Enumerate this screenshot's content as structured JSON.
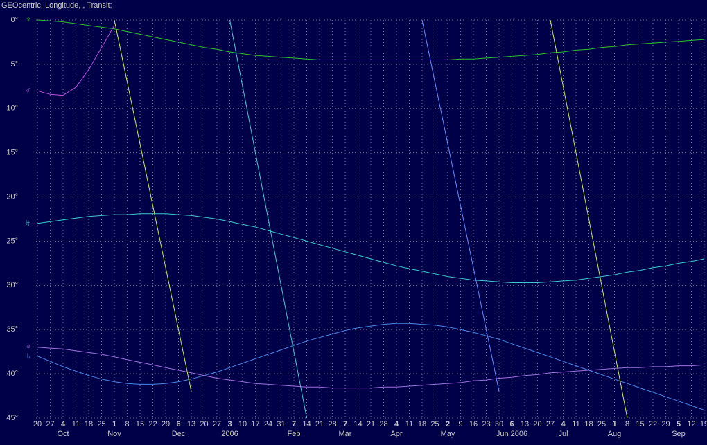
{
  "chart_data": {
    "type": "line",
    "title": "GEOcentric, Longitude, , Transit;",
    "categories": [
      "20",
      "27",
      "4",
      "11",
      "18",
      "25",
      "1",
      "8",
      "15",
      "22",
      "29",
      "6",
      "13",
      "20",
      "27",
      "3",
      "10",
      "17",
      "24",
      "31",
      "7",
      "14",
      "21",
      "28",
      "7",
      "14",
      "21",
      "28",
      "4",
      "11",
      "18",
      "25",
      "2",
      "9",
      "16",
      "23",
      "30",
      "6",
      "13",
      "20",
      "27",
      "4",
      "11",
      "18",
      "25",
      "1",
      "8",
      "15",
      "22",
      "29",
      "5",
      "12",
      "19"
    ],
    "month_labels": [
      null,
      null,
      "Oct",
      null,
      null,
      null,
      "Nov",
      null,
      null,
      null,
      null,
      "Dec",
      null,
      null,
      null,
      "2006",
      null,
      null,
      null,
      null,
      "Feb",
      null,
      null,
      null,
      "Mar",
      null,
      null,
      null,
      "Apr",
      null,
      null,
      null,
      "May",
      null,
      null,
      null,
      null,
      "Jun 2006",
      null,
      null,
      null,
      "Jul",
      null,
      null,
      null,
      "Aug",
      null,
      null,
      null,
      null,
      "Sep",
      null,
      null
    ],
    "ylim": [
      0,
      45
    ],
    "yticks": [
      {
        "value": 0,
        "label": "0°"
      },
      {
        "value": 5,
        "label": "5°"
      },
      {
        "value": 10,
        "label": "10°"
      },
      {
        "value": 15,
        "label": "15°"
      },
      {
        "value": 20,
        "label": "20°"
      },
      {
        "value": 25,
        "label": "25°"
      },
      {
        "value": 30,
        "label": "30°"
      },
      {
        "value": 35,
        "label": "35°"
      },
      {
        "value": 40,
        "label": "40°"
      },
      {
        "value": 45,
        "label": "45°"
      }
    ],
    "y_inverted": true,
    "grid": true,
    "series": [
      {
        "name": "♆",
        "color": "#30c030",
        "values": [
          0,
          0.1,
          0.2,
          0.4,
          0.6,
          0.8,
          1.0,
          1.3,
          1.6,
          1.9,
          2.2,
          2.5,
          2.8,
          3.1,
          3.3,
          3.6,
          3.8,
          4.0,
          4.1,
          4.2,
          4.3,
          4.4,
          4.5,
          4.5,
          4.5,
          4.5,
          4.5,
          4.5,
          4.5,
          4.5,
          4.5,
          4.5,
          4.5,
          4.4,
          4.4,
          4.3,
          4.2,
          4.1,
          4.0,
          3.9,
          3.7,
          3.6,
          3.4,
          3.3,
          3.1,
          3.0,
          2.8,
          2.7,
          2.6,
          2.5,
          2.4,
          2.3,
          2.2
        ]
      },
      {
        "name": "♅",
        "color": "#40c8d0",
        "values": [
          23,
          22.8,
          22.6,
          22.4,
          22.2,
          22.1,
          22.0,
          22.0,
          21.9,
          21.9,
          21.9,
          22.0,
          22.1,
          22.3,
          22.5,
          22.8,
          23.1,
          23.4,
          23.8,
          24.2,
          24.6,
          25.0,
          25.4,
          25.8,
          26.2,
          26.6,
          27.0,
          27.4,
          27.8,
          28.1,
          28.4,
          28.7,
          29.0,
          29.2,
          29.4,
          29.5,
          29.6,
          29.7,
          29.7,
          29.7,
          29.6,
          29.5,
          29.4,
          29.2,
          29.0,
          28.8,
          28.5,
          28.3,
          28.0,
          27.8,
          27.5,
          27.3,
          27.0
        ]
      },
      {
        "name": "♄",
        "color": "#4a88e8",
        "values": [
          38,
          38.6,
          39.2,
          39.7,
          40.2,
          40.6,
          40.9,
          41.1,
          41.2,
          41.2,
          41.1,
          40.9,
          40.6,
          40.2,
          39.8,
          39.3,
          38.8,
          38.3,
          37.8,
          37.3,
          36.8,
          36.3,
          35.9,
          35.5,
          35.1,
          34.8,
          34.6,
          34.4,
          34.3,
          34.3,
          34.4,
          34.5,
          34.7,
          35.0,
          35.3,
          35.7,
          36.1,
          36.6,
          37.1,
          37.6,
          38.1,
          38.6,
          39.1,
          39.6,
          40.1,
          40.6,
          41.1,
          41.6,
          42.1,
          42.6,
          43.1,
          43.6,
          44.1
        ]
      },
      {
        "name": "♆",
        "color": "#a070e0",
        "values": [
          37,
          37.1,
          37.2,
          37.4,
          37.6,
          37.8,
          38.1,
          38.4,
          38.7,
          39.0,
          39.3,
          39.6,
          39.9,
          40.2,
          40.5,
          40.7,
          40.9,
          41.1,
          41.2,
          41.3,
          41.4,
          41.5,
          41.5,
          41.6,
          41.6,
          41.6,
          41.6,
          41.5,
          41.5,
          41.4,
          41.3,
          41.2,
          41.1,
          41.0,
          40.8,
          40.7,
          40.5,
          40.4,
          40.2,
          40.1,
          39.9,
          39.8,
          39.7,
          39.6,
          39.5,
          39.4,
          39.3,
          39.3,
          39.2,
          39.2,
          39.1,
          39.1,
          39.0
        ]
      },
      {
        "name": "♂",
        "color": "#c050e0",
        "values": [
          8,
          8.4,
          8.5,
          7.6,
          5.6,
          3.1,
          0.6,
          null,
          null,
          null,
          null,
          null,
          null,
          null,
          null,
          null,
          null,
          null,
          null,
          null,
          null,
          null,
          null,
          null,
          null,
          null,
          null,
          null,
          null,
          null,
          null,
          null,
          null,
          null,
          null,
          null,
          null,
          null,
          null,
          null,
          null,
          null,
          null,
          null,
          null,
          null,
          null,
          null,
          null,
          null,
          null,
          null,
          null
        ]
      },
      {
        "color": "#c8f040",
        "values": [
          null,
          null,
          null,
          null,
          null,
          null,
          0,
          7,
          14,
          21,
          28,
          35,
          42,
          null,
          null,
          null,
          null,
          null,
          null,
          null,
          null,
          null,
          null,
          null,
          null,
          null,
          null,
          null,
          null,
          null,
          null,
          null,
          null,
          null,
          null,
          null,
          null,
          null,
          null,
          null,
          null,
          null,
          null,
          null,
          null,
          null,
          null,
          null,
          null,
          null,
          null,
          null,
          null
        ]
      },
      {
        "color": "#40d0d0",
        "values": [
          null,
          null,
          null,
          null,
          null,
          null,
          null,
          null,
          null,
          null,
          null,
          null,
          null,
          null,
          null,
          0,
          7.5,
          15,
          22.5,
          30,
          37.5,
          45,
          null,
          null,
          null,
          null,
          null,
          null,
          null,
          null,
          null,
          null,
          null,
          null,
          null,
          null,
          null,
          null,
          null,
          null,
          null,
          null,
          null,
          null,
          null,
          null,
          null,
          null,
          null,
          null,
          null,
          null,
          null
        ]
      },
      {
        "color": "#6090ff",
        "values": [
          null,
          null,
          null,
          null,
          null,
          null,
          null,
          null,
          null,
          null,
          null,
          null,
          null,
          null,
          null,
          null,
          null,
          null,
          null,
          null,
          null,
          null,
          null,
          null,
          null,
          null,
          null,
          null,
          null,
          null,
          0,
          7,
          14,
          21,
          28,
          35,
          42,
          null,
          null,
          null,
          null,
          null,
          null,
          null,
          null,
          null,
          null,
          null,
          null,
          null,
          null,
          null,
          null
        ]
      },
      {
        "color": "#c8f040",
        "values": [
          null,
          null,
          null,
          null,
          null,
          null,
          null,
          null,
          null,
          null,
          null,
          null,
          null,
          null,
          null,
          null,
          null,
          null,
          null,
          null,
          null,
          null,
          null,
          null,
          null,
          null,
          null,
          null,
          null,
          null,
          null,
          null,
          null,
          null,
          null,
          null,
          null,
          null,
          null,
          null,
          0,
          7.5,
          15,
          22.5,
          30,
          37.5,
          45,
          null,
          null,
          null,
          null,
          null,
          null
        ]
      }
    ]
  }
}
